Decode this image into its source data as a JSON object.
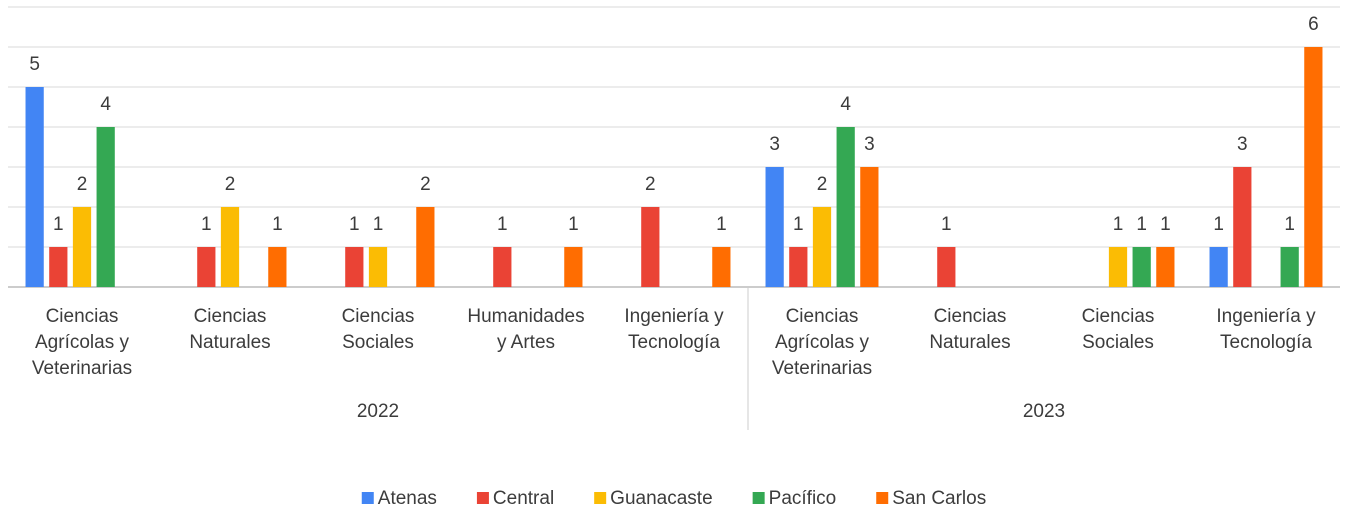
{
  "chart_data": {
    "type": "bar",
    "category_groups": [
      {
        "name": "2022",
        "categories": [
          "Ciencias Agrícolas y Veterinarias",
          "Ciencias Naturales",
          "Ciencias Sociales",
          "Humanidades y Artes",
          "Ingeniería y Tecnología"
        ]
      },
      {
        "name": "2023",
        "categories": [
          "Ciencias Agrícolas y Veterinarias",
          "Ciencias Naturales",
          "Ciencias Sociales",
          "Ingeniería y Tecnología"
        ]
      }
    ],
    "series": [
      {
        "name": "Atenas",
        "color": "#4285f4",
        "values": [
          5,
          null,
          null,
          null,
          null,
          3,
          null,
          null,
          1
        ]
      },
      {
        "name": "Central",
        "color": "#ea4335",
        "values": [
          1,
          1,
          1,
          1,
          2,
          1,
          1,
          null,
          3
        ]
      },
      {
        "name": "Guanacaste",
        "color": "#fbbc04",
        "values": [
          2,
          2,
          1,
          null,
          null,
          2,
          null,
          1,
          null
        ]
      },
      {
        "name": "Pacífico",
        "color": "#34a853",
        "values": [
          4,
          null,
          null,
          null,
          null,
          4,
          null,
          1,
          1
        ]
      },
      {
        "name": "San Carlos",
        "color": "#ff6d01",
        "values": [
          null,
          1,
          2,
          1,
          1,
          3,
          null,
          1,
          6
        ]
      }
    ],
    "ylim": [
      0,
      7
    ],
    "yticks": [
      0,
      1,
      2,
      3,
      4,
      5,
      6,
      7
    ],
    "grid": true,
    "legend": "bottom"
  }
}
